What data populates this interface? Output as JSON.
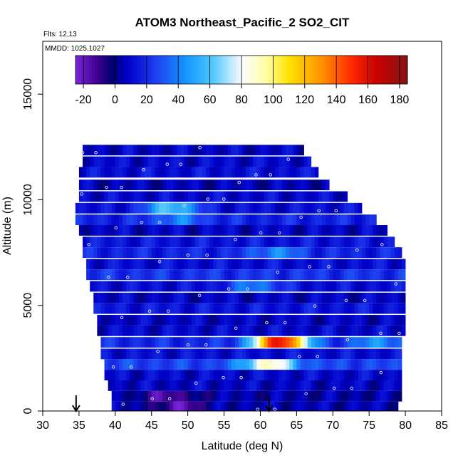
{
  "chart_data": {
    "type": "heatmap",
    "title": "ATOM3 Northeast_Pacific_2 SO2_CIT",
    "flights_label": "Flts: 12,13",
    "date_label": "MMDD: 1025,1027",
    "xlabel": "Latitude (deg N)",
    "ylabel": "Altitude (m)",
    "xlim": [
      30,
      85
    ],
    "ylim": [
      0,
      17500
    ],
    "x_ticks": [
      "30",
      "35",
      "40",
      "45",
      "50",
      "55",
      "60",
      "65",
      "70",
      "75",
      "80",
      "85"
    ],
    "y_ticks": [
      "0",
      "5000",
      "10000",
      "15000"
    ],
    "colorbar": {
      "range": [
        -25,
        185
      ],
      "ticks": [
        "-20",
        "0",
        "20",
        "40",
        "60",
        "80",
        "100",
        "120",
        "140",
        "160",
        "180"
      ]
    },
    "arrow_markers_latitude": [
      34.6,
      61.2
    ],
    "profiles": [
      {
        "alt": 12350,
        "lat_start": 35.5,
        "lat_end": 66.0,
        "background": 8,
        "hotspots": []
      },
      {
        "alt": 11800,
        "lat_start": 35.5,
        "lat_end": 67.0,
        "background": 10,
        "hotspots": []
      },
      {
        "alt": 11300,
        "lat_start": 35.0,
        "lat_end": 68.0,
        "background": 12,
        "hotspots": []
      },
      {
        "alt": 10700,
        "lat_start": 35.0,
        "lat_end": 69.5,
        "background": 6,
        "hotspots": []
      },
      {
        "alt": 10150,
        "lat_start": 35.0,
        "lat_end": 72.0,
        "background": 10,
        "hotspots": []
      },
      {
        "alt": 9600,
        "lat_start": 34.5,
        "lat_end": 74.0,
        "background": 12,
        "hotspots": [
          {
            "lat": 47.5,
            "value": 62
          }
        ]
      },
      {
        "alt": 9050,
        "lat_start": 34.5,
        "lat_end": 76.0,
        "background": 18,
        "hotspots": [
          {
            "lat": 48.5,
            "value": 40
          }
        ]
      },
      {
        "alt": 8550,
        "lat_start": 35.0,
        "lat_end": 77.5,
        "background": 8,
        "hotspots": []
      },
      {
        "alt": 8000,
        "lat_start": 35.5,
        "lat_end": 78.5,
        "background": 14,
        "hotspots": []
      },
      {
        "alt": 7500,
        "lat_start": 35.5,
        "lat_end": 79.5,
        "background": 18,
        "hotspots": [
          {
            "lat": 62.0,
            "value": 42
          }
        ]
      },
      {
        "alt": 6950,
        "lat_start": 36.0,
        "lat_end": 80.0,
        "background": 12,
        "hotspots": []
      },
      {
        "alt": 6450,
        "lat_start": 36.0,
        "lat_end": 80.0,
        "background": 22,
        "hotspots": []
      },
      {
        "alt": 5900,
        "lat_start": 36.5,
        "lat_end": 80.0,
        "background": 12,
        "hotspots": [
          {
            "lat": 59.0,
            "value": 40
          }
        ]
      },
      {
        "alt": 5350,
        "lat_start": 37.0,
        "lat_end": 80.0,
        "background": 8,
        "hotspots": []
      },
      {
        "alt": 4850,
        "lat_start": 37.0,
        "lat_end": 80.0,
        "background": 14,
        "hotspots": []
      },
      {
        "alt": 4300,
        "lat_start": 37.5,
        "lat_end": 80.0,
        "background": 8,
        "hotspots": []
      },
      {
        "alt": 3800,
        "lat_start": 37.5,
        "lat_end": 80.0,
        "background": 10,
        "hotspots": []
      },
      {
        "alt": 3250,
        "lat_start": 38.0,
        "lat_end": 79.5,
        "background": 20,
        "hotspots": [
          {
            "lat": 62.5,
            "value": 160
          },
          {
            "lat": 76.0,
            "value": 45
          }
        ]
      },
      {
        "alt": 2700,
        "lat_start": 38.0,
        "lat_end": 79.5,
        "background": 12,
        "hotspots": []
      },
      {
        "alt": 2200,
        "lat_start": 38.5,
        "lat_end": 79.5,
        "background": 26,
        "hotspots": [
          {
            "lat": 61.0,
            "value": 90
          }
        ]
      },
      {
        "alt": 1700,
        "lat_start": 38.5,
        "lat_end": 79.5,
        "background": 10,
        "hotspots": []
      },
      {
        "alt": 1200,
        "lat_start": 39.0,
        "lat_end": 79.5,
        "background": 8,
        "hotspots": []
      },
      {
        "alt": 700,
        "lat_start": 39.5,
        "lat_end": 79.5,
        "background": 4,
        "hotspots": [
          {
            "lat": 47.0,
            "value": -15
          }
        ]
      },
      {
        "alt": 200,
        "lat_start": 39.5,
        "lat_end": 79.0,
        "background": 6,
        "hotspots": [
          {
            "lat": 48.5,
            "value": -18
          }
        ]
      }
    ]
  }
}
